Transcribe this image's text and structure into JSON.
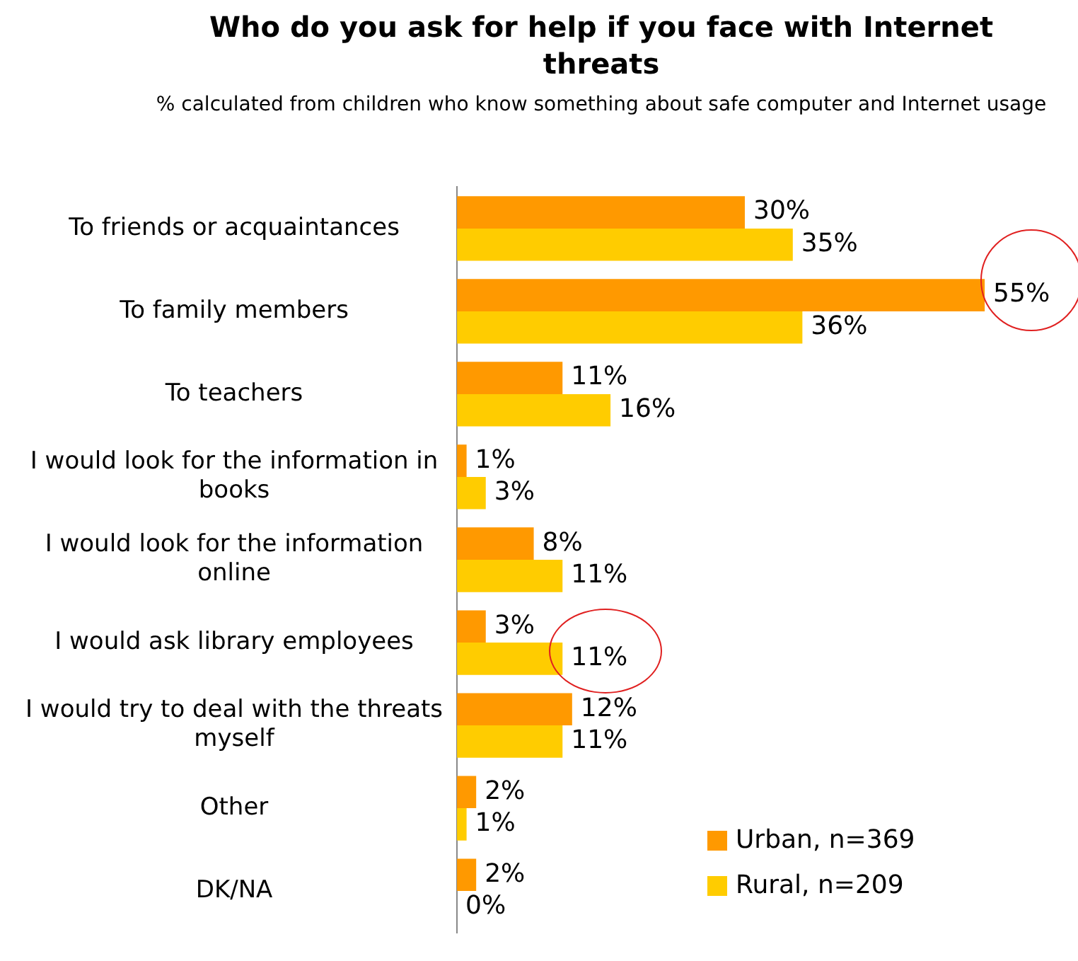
{
  "chart_data": {
    "type": "bar",
    "orientation": "horizontal",
    "title": "Who do you ask for help if you face with Internet threats",
    "subtitle": "% calculated from children who know something about safe computer and Internet usage",
    "categories": [
      "To friends or acquaintances",
      "To family members",
      "To teachers",
      "I would look for the information in books",
      "I would look for the information online",
      "I would ask library employees",
      "I would try to deal with the threats myself",
      "Other",
      "DK/NA"
    ],
    "series": [
      {
        "name": "Urban, n=369",
        "color": "#ff9900",
        "values": [
          30,
          55,
          11,
          1,
          8,
          3,
          12,
          2,
          2
        ],
        "value_labels": [
          "30%",
          "55%",
          "11%",
          "1%",
          "8%",
          "3%",
          "12%",
          "2%",
          "2%"
        ]
      },
      {
        "name": "Rural, n=209",
        "color": "#ffcc00",
        "values": [
          35,
          36,
          16,
          3,
          11,
          11,
          11,
          1,
          0
        ],
        "value_labels": [
          "35%",
          "36%",
          "16%",
          "3%",
          "11%",
          "11%",
          "11%",
          "1%",
          "0%"
        ]
      }
    ],
    "legend": "bottom right"
  }
}
